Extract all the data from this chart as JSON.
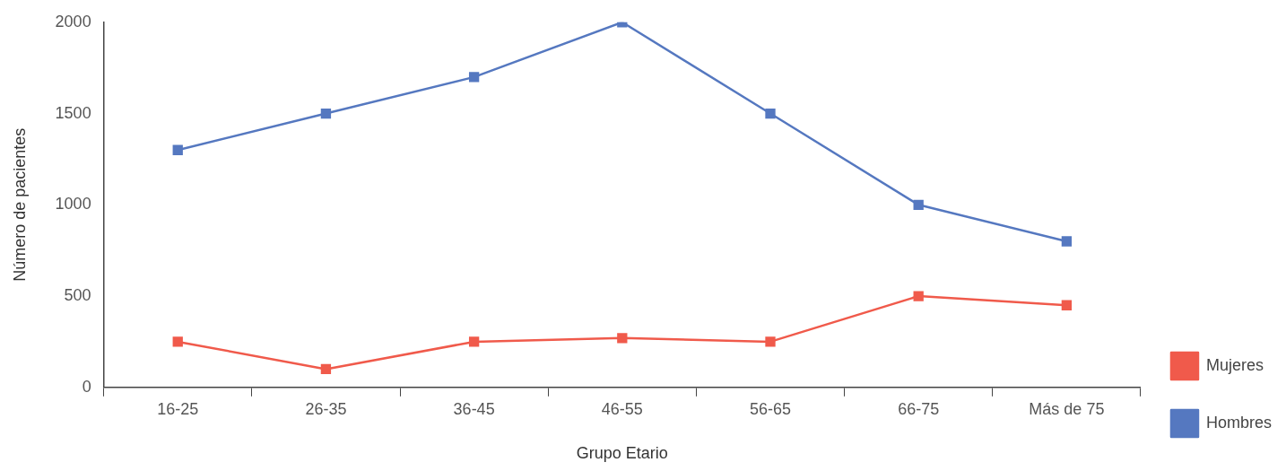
{
  "chart_data": {
    "type": "line",
    "xlabel": "Grupo Etario",
    "ylabel": "Número de pacientes",
    "categories": [
      "16-25",
      "26-35",
      "36-45",
      "46-55",
      "56-65",
      "66-75",
      "Más de 75"
    ],
    "series": [
      {
        "name": "Mujeres",
        "color": "#f05a4b",
        "values": [
          250,
          100,
          250,
          270,
          250,
          500,
          450
        ]
      },
      {
        "name": "Hombres",
        "color": "#5578c0",
        "values": [
          1300,
          1500,
          1700,
          2000,
          1500,
          1000,
          800
        ]
      }
    ],
    "ylim": [
      0,
      2000
    ],
    "yticks": [
      0,
      500,
      1000,
      1500,
      2000
    ],
    "grid": false,
    "legend": "right",
    "marker": "square",
    "line_style": "solid"
  }
}
